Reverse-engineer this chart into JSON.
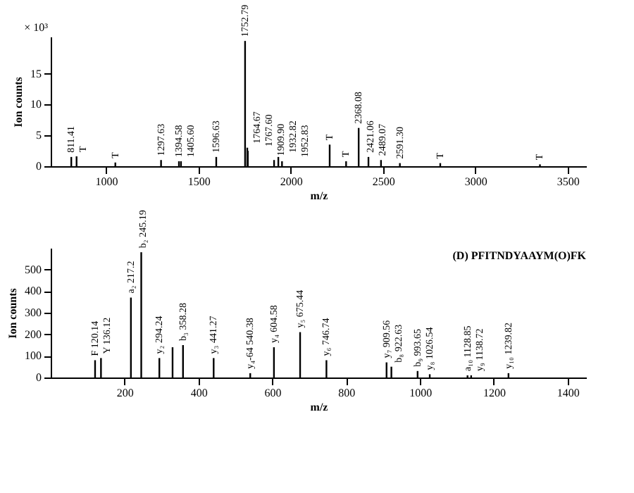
{
  "chart_data": [
    {
      "type": "bar",
      "xlabel": "m/z",
      "ylabel": "Ion counts",
      "color": "#000000",
      "grid": false,
      "x": [
        811.41,
        840,
        1050,
        1297.63,
        1394.58,
        1405.6,
        1596.63,
        1752.79,
        1764.67,
        1767.6,
        1909.9,
        1932.82,
        1952.83,
        2211,
        2300,
        2368.08,
        2421.06,
        2489.07,
        2591.3,
        2810,
        3350
      ],
      "values": [
        1.5,
        1.6,
        0.6,
        1.0,
        0.8,
        0.8,
        1.5,
        20.3,
        3.0,
        2.5,
        1.0,
        1.5,
        0.8,
        3.5,
        0.8,
        6.2,
        1.5,
        1.0,
        0.5,
        0.5,
        0.3
      ],
      "xlim": [
        700,
        3600
      ],
      "xticks": [
        1000,
        1500,
        2000,
        2500,
        3000,
        3500
      ],
      "ylim": [
        0,
        21
      ],
      "yticks": [
        0,
        5,
        10,
        15
      ],
      "annotations": [
        "× 10³",
        {
          "text": "811.41",
          "x": 811.41,
          "y": 1.5
        },
        {
          "text": "T",
          "x": 840,
          "y": 1.6
        },
        {
          "text": "T",
          "x": 1050,
          "y": 0.6
        },
        {
          "text": "1297.63",
          "x": 1297.63,
          "y": 1.0
        },
        {
          "text": "1394.58",
          "x": 1394.58,
          "y": 0.8
        },
        {
          "text": "1405.60",
          "x": 1405.6,
          "y": 0.8
        },
        {
          "text": "1596.63",
          "x": 1596.63,
          "y": 1.5
        },
        {
          "text": "1752.79",
          "x": 1752.79,
          "y": 20.3
        },
        {
          "text": "1764.67",
          "x": 1764.67,
          "y": 3.0
        },
        {
          "text": "1767.60",
          "x": 1767.6,
          "y": 2.5
        },
        {
          "text": "1909.90",
          "x": 1909.9,
          "y": 1.0
        },
        {
          "text": "1932.82",
          "x": 1932.82,
          "y": 1.5
        },
        {
          "text": "1952.83",
          "x": 1952.83,
          "y": 0.8
        },
        {
          "text": "T",
          "x": 2211,
          "y": 3.5
        },
        {
          "text": "T",
          "x": 2300,
          "y": 0.8
        },
        {
          "text": "2368.08",
          "x": 2368.08,
          "y": 6.2
        },
        {
          "text": "2421.06",
          "x": 2421.06,
          "y": 1.5
        },
        {
          "text": "2489.07",
          "x": 2489.07,
          "y": 1.0
        },
        {
          "text": "2591.30",
          "x": 2591.3,
          "y": 0.5
        },
        {
          "text": "T",
          "x": 2810,
          "y": 0.5
        },
        {
          "text": "T",
          "x": 3350,
          "y": 0.3
        }
      ]
    },
    {
      "type": "bar",
      "title": "(D) PFITNDYAAYM(O)FK",
      "xlabel": "m/z",
      "ylabel": "Ion counts",
      "color": "#000000",
      "grid": false,
      "x": [
        120.14,
        136.12,
        217.2,
        245.19,
        294.24,
        330,
        358.28,
        441.27,
        540.38,
        604.58,
        675.44,
        746.74,
        909.56,
        922.63,
        993.65,
        1026.54,
        1128.85,
        1138.72,
        1239.82
      ],
      "values": [
        80,
        90,
        370,
        580,
        90,
        140,
        150,
        90,
        20,
        140,
        210,
        80,
        70,
        50,
        30,
        15,
        10,
        10,
        20
      ],
      "xlim": [
        0,
        1450
      ],
      "xticks": [
        200,
        400,
        600,
        800,
        1000,
        1200,
        1400
      ],
      "ylim": [
        0,
        600
      ],
      "yticks": [
        0,
        100,
        200,
        300,
        400,
        500
      ],
      "annotations": [
        {
          "text": "F 120.14",
          "x": 120.14,
          "y": 80
        },
        {
          "text": "Y 136.12",
          "x": 136.12,
          "y": 90
        },
        {
          "text": "a₂ 217.2",
          "x": 217.2,
          "y": 370
        },
        {
          "text": "b₂ 245.19",
          "x": 245.19,
          "y": 580
        },
        {
          "text": "y₂ 294.24",
          "x": 294.24,
          "y": 90
        },
        {
          "text": "b₃ 358.28",
          "x": 358.28,
          "y": 150
        },
        {
          "text": "y₃ 441.27",
          "x": 441.27,
          "y": 90
        },
        {
          "text": "y₄-64 540.38",
          "x": 540.38,
          "y": 20
        },
        {
          "text": "y₄ 604.58",
          "x": 604.58,
          "y": 140
        },
        {
          "text": "y₅ 675.44",
          "x": 675.44,
          "y": 210
        },
        {
          "text": "y₆ 746.74",
          "x": 746.74,
          "y": 80
        },
        {
          "text": "y₇ 909.56",
          "x": 909.56,
          "y": 70
        },
        {
          "text": "b₈ 922.63",
          "x": 922.63,
          "y": 50
        },
        {
          "text": "b₉ 993.65",
          "x": 993.65,
          "y": 30
        },
        {
          "text": "y₈ 1026.54",
          "x": 1026.54,
          "y": 15
        },
        {
          "text": "a₁₀ 1128.85",
          "x": 1128.85,
          "y": 10
        },
        {
          "text": "y₉ 1138.72",
          "x": 1138.72,
          "y": 10
        },
        {
          "text": "y₁₀ 1239.82",
          "x": 1239.82,
          "y": 20
        }
      ]
    }
  ]
}
